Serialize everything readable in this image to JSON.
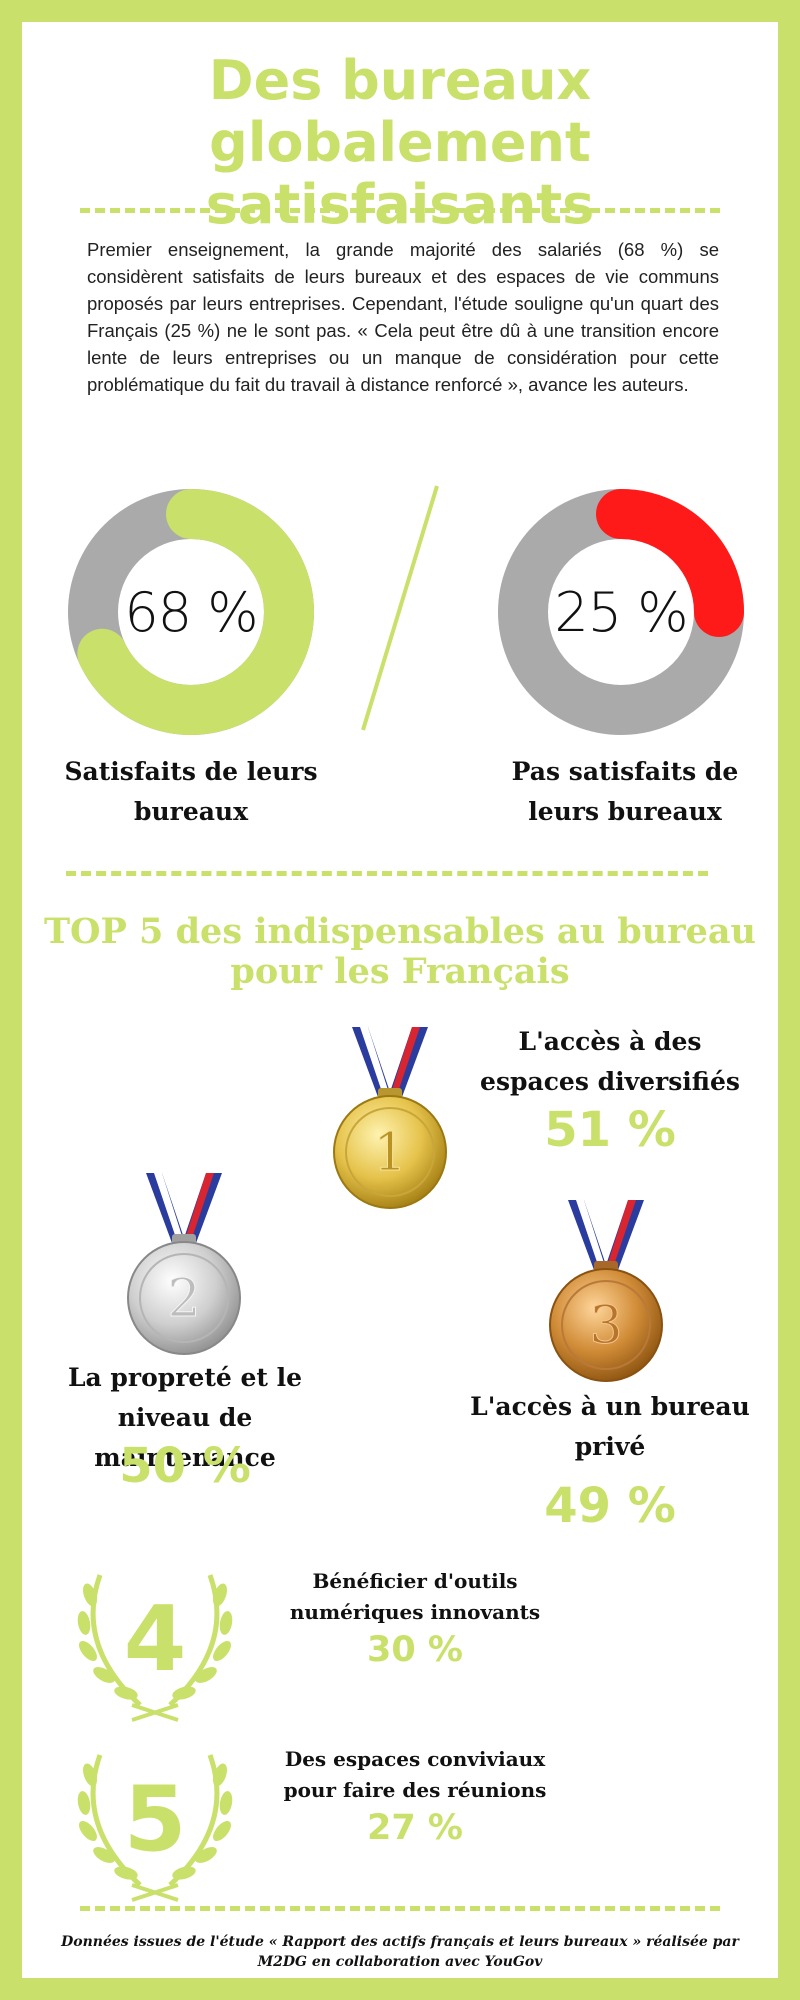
{
  "title": "Des bureaux globalement satisfaisants",
  "intro": "Premier enseignement, la grande majorité des salariés (68 %) se considèrent satisfaits de leurs bureaux et des espaces de vie communs proposés par leurs entreprises. Cependant, l'étude souligne qu'un quart des Français (25 %) ne le sont pas. « Cela peut être dû à une transition encore lente de leurs entreprises ou un manque de considération pour cette problématique du fait du travail à distance renforcé », avance les auteurs.",
  "colors": {
    "accent": "#c9e06a",
    "track": "#aaaaaa",
    "negative": "#ff1a1a"
  },
  "chart_data": [
    {
      "type": "pie",
      "variant": "donut",
      "value": 68,
      "label_text": "68 %",
      "label": "Satisfaits de leurs bureaux",
      "color": "#c9e06a"
    },
    {
      "type": "pie",
      "variant": "donut",
      "value": 25,
      "label_text": "25 %",
      "label": "Pas satisfaits de leurs bureaux",
      "color": "#ff1a1a"
    }
  ],
  "top5": {
    "title": "TOP 5 des indispensables au bureau pour les Français",
    "items": [
      {
        "rank": "1",
        "icon": "gold-medal-icon",
        "label": "L'accès à des espaces diversifiés",
        "value": "51 %"
      },
      {
        "rank": "2",
        "icon": "silver-medal-icon",
        "label": "La propreté et le niveau de maintenance",
        "value": "50 %"
      },
      {
        "rank": "3",
        "icon": "bronze-medal-icon",
        "label": "L'accès à un bureau privé",
        "value": "49 %"
      },
      {
        "rank": "4",
        "icon": "laurel-4-icon",
        "label": "Bénéficier d'outils numériques innovants",
        "value": "30 %"
      },
      {
        "rank": "5",
        "icon": "laurel-5-icon",
        "label": "Des espaces conviviaux pour faire des réunions",
        "value": "27 %"
      }
    ]
  },
  "footer": "Données issues de l'étude « Rapport des actifs français et leurs bureaux » réalisée par M2DG en collaboration avec YouGov"
}
